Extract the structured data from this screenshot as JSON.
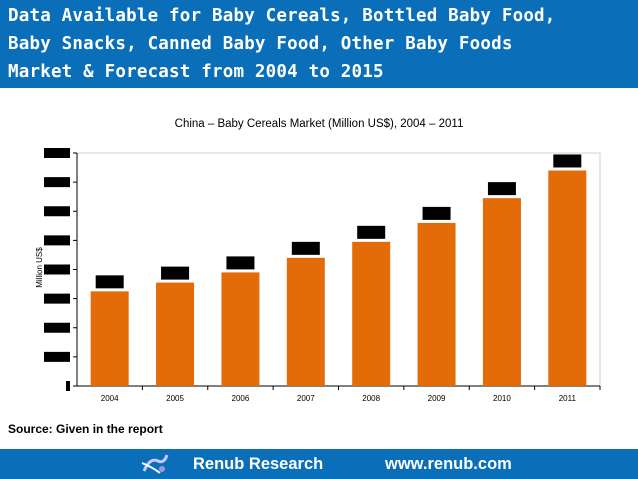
{
  "header": {
    "title_lines": [
      "Data Available for Baby Cereals, Bottled Baby Food,",
      "Baby Snacks, Canned Baby Food, Other Baby Foods",
      "Market & Forecast from 2004 to 2015"
    ]
  },
  "chart_data": {
    "type": "bar",
    "title": "China – Baby Cereals Market (Million US$), 2004 – 2011",
    "xlabel": "",
    "ylabel": "Million US$",
    "categories": [
      "2004",
      "2005",
      "2006",
      "2007",
      "2008",
      "2009",
      "2010",
      "2011"
    ],
    "values": [
      3.25,
      3.55,
      3.9,
      4.4,
      4.95,
      5.6,
      6.45,
      7.4
    ],
    "ylim": [
      0,
      8
    ],
    "y_tick_labels_redacted": true,
    "data_labels_redacted": true,
    "grid": false,
    "bar_color": "#e36c09"
  },
  "source": "Source: Given in the report",
  "footer": {
    "org": "Renub Research",
    "url": "www.renub.com"
  }
}
